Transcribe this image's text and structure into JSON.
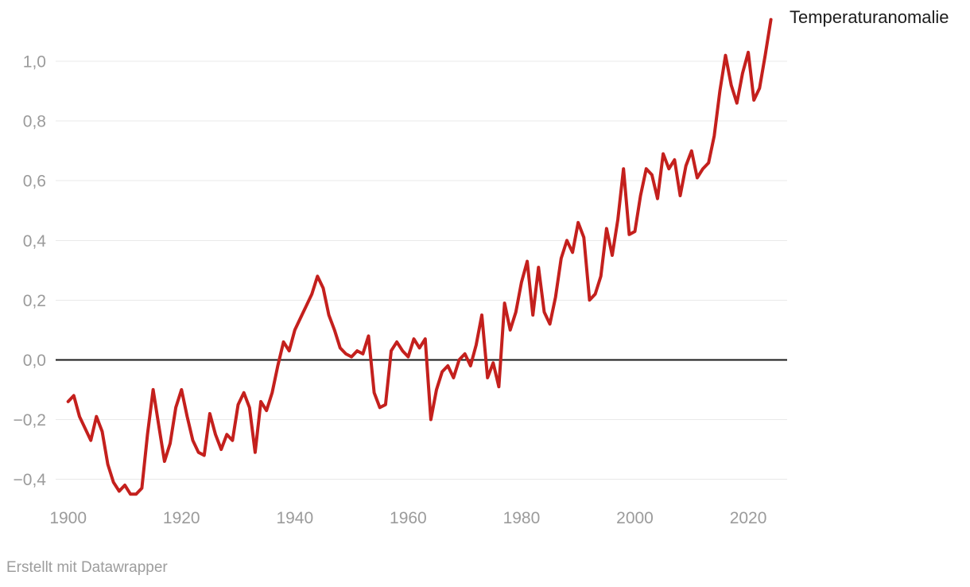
{
  "header": {
    "series_label": "Temperaturanomalie"
  },
  "footer": {
    "credit": "Erstellt mit Datawrapper"
  },
  "colors": {
    "background": "#ffffff",
    "line": "#c4201d",
    "grid": "#e9e9e9",
    "zero_line": "#1a1a1a",
    "tick_text": "#9b9b9b",
    "label_text": "#1d1d1d",
    "credit_text": "#9d9d9d"
  },
  "chart_data": {
    "type": "line",
    "title": "Temperaturanomalie",
    "xlabel": "",
    "ylabel": "",
    "grid": "horizontal",
    "zero_line": true,
    "legend_position": "line-end-label",
    "xlim": [
      1898,
      2027
    ],
    "ylim": [
      -0.5,
      1.16
    ],
    "x_ticks": [
      {
        "value": 1900,
        "label": "1900"
      },
      {
        "value": 1920,
        "label": "1920"
      },
      {
        "value": 1940,
        "label": "1940"
      },
      {
        "value": 1960,
        "label": "1960"
      },
      {
        "value": 1980,
        "label": "1980"
      },
      {
        "value": 2000,
        "label": "2000"
      },
      {
        "value": 2020,
        "label": "2020"
      }
    ],
    "y_ticks": [
      {
        "value": 1.0,
        "label": "1,0"
      },
      {
        "value": 0.8,
        "label": "0,8"
      },
      {
        "value": 0.6,
        "label": "0,6"
      },
      {
        "value": 0.4,
        "label": "0,4"
      },
      {
        "value": 0.2,
        "label": "0,2"
      },
      {
        "value": 0.0,
        "label": "0,0"
      },
      {
        "value": -0.2,
        "label": "−0,2"
      },
      {
        "value": -0.4,
        "label": "−0,4"
      }
    ],
    "series": [
      {
        "name": "Temperaturanomalie",
        "x": [
          1900,
          1901,
          1902,
          1903,
          1904,
          1905,
          1906,
          1907,
          1908,
          1909,
          1910,
          1911,
          1912,
          1913,
          1914,
          1915,
          1916,
          1917,
          1918,
          1919,
          1920,
          1921,
          1922,
          1923,
          1924,
          1925,
          1926,
          1927,
          1928,
          1929,
          1930,
          1931,
          1932,
          1933,
          1934,
          1935,
          1936,
          1937,
          1938,
          1939,
          1940,
          1941,
          1942,
          1943,
          1944,
          1945,
          1946,
          1947,
          1948,
          1949,
          1950,
          1951,
          1952,
          1953,
          1954,
          1955,
          1956,
          1957,
          1958,
          1959,
          1960,
          1961,
          1962,
          1963,
          1964,
          1965,
          1966,
          1967,
          1968,
          1969,
          1970,
          1971,
          1972,
          1973,
          1974,
          1975,
          1976,
          1977,
          1978,
          1979,
          1980,
          1981,
          1982,
          1983,
          1984,
          1985,
          1986,
          1987,
          1988,
          1989,
          1990,
          1991,
          1992,
          1993,
          1994,
          1995,
          1996,
          1997,
          1998,
          1999,
          2000,
          2001,
          2002,
          2003,
          2004,
          2005,
          2006,
          2007,
          2008,
          2009,
          2010,
          2011,
          2012,
          2013,
          2014,
          2015,
          2016,
          2017,
          2018,
          2019,
          2020,
          2021,
          2022,
          2023,
          2024
        ],
        "values": [
          -0.14,
          -0.12,
          -0.19,
          -0.23,
          -0.27,
          -0.19,
          -0.24,
          -0.35,
          -0.41,
          -0.44,
          -0.42,
          -0.45,
          -0.45,
          -0.43,
          -0.25,
          -0.1,
          -0.22,
          -0.34,
          -0.28,
          -0.16,
          -0.1,
          -0.19,
          -0.27,
          -0.31,
          -0.32,
          -0.18,
          -0.25,
          -0.3,
          -0.25,
          -0.27,
          -0.15,
          -0.11,
          -0.16,
          -0.31,
          -0.14,
          -0.17,
          -0.11,
          -0.02,
          0.06,
          0.03,
          0.1,
          0.14,
          0.18,
          0.22,
          0.28,
          0.24,
          0.15,
          0.1,
          0.04,
          0.02,
          0.01,
          0.03,
          0.02,
          0.08,
          -0.11,
          -0.16,
          -0.15,
          0.03,
          0.06,
          0.03,
          0.01,
          0.07,
          0.04,
          0.07,
          -0.2,
          -0.1,
          -0.04,
          -0.02,
          -0.06,
          0.0,
          0.02,
          -0.02,
          0.05,
          0.15,
          -0.06,
          -0.01,
          -0.09,
          0.19,
          0.1,
          0.16,
          0.26,
          0.33,
          0.15,
          0.31,
          0.16,
          0.12,
          0.21,
          0.34,
          0.4,
          0.36,
          0.46,
          0.41,
          0.2,
          0.22,
          0.28,
          0.44,
          0.35,
          0.47,
          0.64,
          0.42,
          0.43,
          0.55,
          0.64,
          0.62,
          0.54,
          0.69,
          0.64,
          0.67,
          0.55,
          0.65,
          0.7,
          0.61,
          0.64,
          0.66,
          0.75,
          0.9,
          1.02,
          0.92,
          0.86,
          0.96,
          1.03,
          0.87,
          0.91,
          1.02,
          1.14
        ]
      }
    ]
  }
}
